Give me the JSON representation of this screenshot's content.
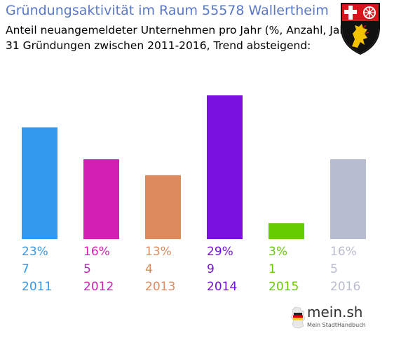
{
  "chart_data": {
    "type": "bar",
    "title": "Gründungsaktivität im Raum 55578 Wallertheim",
    "subtitle_lines": [
      "Anteil neuangemeldeter Unternehmen pro Jahr (%, Anzahl, Jahr)",
      "31 Gründungen zwischen 2011-2016, Trend absteigend:"
    ],
    "categories": [
      "2011",
      "2012",
      "2013",
      "2014",
      "2015",
      "2016"
    ],
    "values": [
      7,
      5,
      4,
      9,
      1,
      5
    ],
    "percent_labels": [
      "23%",
      "16%",
      "13%",
      "29%",
      "3%",
      "16%"
    ],
    "colors": [
      "#3399ee",
      "#d41fb4",
      "#dd8a5e",
      "#7a10e0",
      "#66cc00",
      "#b8bcd0"
    ],
    "xlabel": "",
    "ylabel": "",
    "grid": false,
    "legend": "none"
  },
  "crest_icon": "rhineland-palatinate-coat-of-arms-icon",
  "logo": {
    "icon": "germany-map-icon",
    "name": "mein.sh",
    "tagline": "Mein StadtHandbuch"
  }
}
